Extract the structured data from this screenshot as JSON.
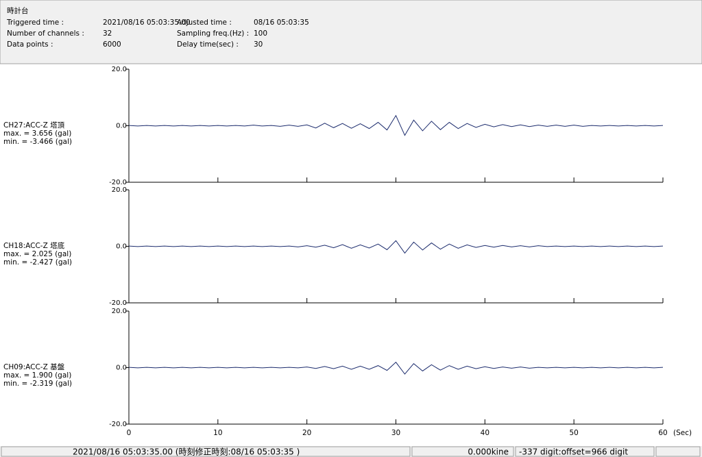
{
  "header": {
    "title": "時計台",
    "fields": [
      {
        "label": "Triggered time :",
        "value": "2021/08/16 05:03:35.00"
      },
      {
        "label": "Number of channels :",
        "value": 32
      },
      {
        "label": "Data points :",
        "value": 6000
      },
      {
        "label": "Adjusted time :",
        "value": "08/16 05:03:35"
      },
      {
        "label": "Sampling freq.(Hz) :",
        "value": 100
      },
      {
        "label": "Delay time(sec) :",
        "value": 30
      }
    ]
  },
  "chart_data": [
    {
      "type": "line",
      "name": "CH27:ACC-Z 塔頂",
      "max_label": "max. = 3.656 (gal)",
      "min_label": "min. = -3.466 (gal)",
      "color": "#1a2a6c",
      "ylim": [
        -20,
        20
      ],
      "yticks": [
        {
          "value": 20,
          "label": "20.0"
        },
        {
          "value": 0,
          "label": "0.0"
        },
        {
          "value": -20,
          "label": "-20.0"
        }
      ],
      "xlim": [
        0,
        60
      ],
      "xticks": [
        0,
        10,
        20,
        30,
        40,
        50,
        60
      ],
      "x": [
        0,
        1,
        2,
        3,
        4,
        5,
        6,
        7,
        8,
        9,
        10,
        11,
        12,
        13,
        14,
        15,
        16,
        17,
        18,
        19,
        20,
        21,
        22,
        23,
        24,
        25,
        26,
        27,
        28,
        29,
        30,
        31,
        32,
        33,
        34,
        35,
        36,
        37,
        38,
        39,
        40,
        41,
        42,
        43,
        44,
        45,
        46,
        47,
        48,
        49,
        50,
        51,
        52,
        53,
        54,
        55,
        56,
        57,
        58,
        59,
        60
      ],
      "values": [
        0.1,
        -0.1,
        0.1,
        -0.1,
        0.1,
        -0.1,
        0.1,
        -0.1,
        0.1,
        -0.1,
        0.1,
        -0.1,
        0.1,
        -0.1,
        0.2,
        -0.1,
        0.1,
        -0.2,
        0.2,
        -0.2,
        0.3,
        -0.8,
        0.9,
        -0.7,
        0.8,
        -0.9,
        0.7,
        -1.0,
        1.2,
        -1.5,
        3.6,
        -3.4,
        2.0,
        -1.8,
        1.6,
        -1.4,
        1.2,
        -1.0,
        0.8,
        -0.6,
        0.5,
        -0.4,
        0.4,
        -0.3,
        0.3,
        -0.3,
        0.2,
        -0.2,
        0.2,
        -0.2,
        0.2,
        -0.2,
        0.1,
        -0.1,
        0.1,
        -0.1,
        0.1,
        -0.1,
        0.1,
        -0.1,
        0.1
      ]
    },
    {
      "type": "line",
      "name": "CH18:ACC-Z 塔底",
      "max_label": "max. = 2.025 (gal)",
      "min_label": "min. = -2.427 (gal)",
      "color": "#1a2a6c",
      "ylim": [
        -20,
        20
      ],
      "yticks": [
        {
          "value": 20,
          "label": "20.0"
        },
        {
          "value": 0,
          "label": "0.0"
        },
        {
          "value": -20,
          "label": "-20.0"
        }
      ],
      "xlim": [
        0,
        60
      ],
      "xticks": [
        0,
        10,
        20,
        30,
        40,
        50,
        60
      ],
      "x": [
        0,
        1,
        2,
        3,
        4,
        5,
        6,
        7,
        8,
        9,
        10,
        11,
        12,
        13,
        14,
        15,
        16,
        17,
        18,
        19,
        20,
        21,
        22,
        23,
        24,
        25,
        26,
        27,
        28,
        29,
        30,
        31,
        32,
        33,
        34,
        35,
        36,
        37,
        38,
        39,
        40,
        41,
        42,
        43,
        44,
        45,
        46,
        47,
        48,
        49,
        50,
        51,
        52,
        53,
        54,
        55,
        56,
        57,
        58,
        59,
        60
      ],
      "values": [
        0.1,
        -0.1,
        0.1,
        -0.1,
        0.1,
        -0.1,
        0.1,
        -0.1,
        0.1,
        -0.1,
        0.1,
        -0.1,
        0.1,
        -0.1,
        0.1,
        -0.1,
        0.1,
        -0.1,
        0.1,
        -0.2,
        0.2,
        -0.3,
        0.4,
        -0.5,
        0.6,
        -0.7,
        0.5,
        -0.6,
        0.8,
        -1.2,
        2.0,
        -2.4,
        1.5,
        -1.3,
        1.2,
        -1.0,
        0.8,
        -0.7,
        0.5,
        -0.4,
        0.3,
        -0.3,
        0.3,
        -0.2,
        0.2,
        -0.2,
        0.2,
        -0.1,
        0.1,
        -0.1,
        0.1,
        -0.1,
        0.1,
        -0.1,
        0.1,
        -0.1,
        0.1,
        -0.1,
        0.1,
        -0.1,
        0.1
      ]
    },
    {
      "type": "line",
      "name": "CH09:ACC-Z 基盤",
      "max_label": "max. = 1.900 (gal)",
      "min_label": "min. = -2.319 (gal)",
      "color": "#1a2a6c",
      "ylim": [
        -20,
        20
      ],
      "yticks": [
        {
          "value": 20,
          "label": "20.0"
        },
        {
          "value": 0,
          "label": "0.0"
        },
        {
          "value": -20,
          "label": "-20.0"
        }
      ],
      "xlim": [
        0,
        60
      ],
      "xticks": [
        0,
        10,
        20,
        30,
        40,
        50,
        60
      ],
      "xlabel": "(Sec)",
      "x": [
        0,
        1,
        2,
        3,
        4,
        5,
        6,
        7,
        8,
        9,
        10,
        11,
        12,
        13,
        14,
        15,
        16,
        17,
        18,
        19,
        20,
        21,
        22,
        23,
        24,
        25,
        26,
        27,
        28,
        29,
        30,
        31,
        32,
        33,
        34,
        35,
        36,
        37,
        38,
        39,
        40,
        41,
        42,
        43,
        44,
        45,
        46,
        47,
        48,
        49,
        50,
        51,
        52,
        53,
        54,
        55,
        56,
        57,
        58,
        59,
        60
      ],
      "values": [
        0.1,
        -0.1,
        0.1,
        -0.1,
        0.1,
        -0.1,
        0.1,
        -0.1,
        0.1,
        -0.1,
        0.1,
        -0.1,
        0.1,
        -0.1,
        0.1,
        -0.1,
        0.1,
        -0.1,
        0.1,
        -0.1,
        0.2,
        -0.3,
        0.4,
        -0.4,
        0.5,
        -0.6,
        0.5,
        -0.6,
        0.7,
        -1.0,
        1.9,
        -2.3,
        1.4,
        -1.2,
        1.0,
        -0.9,
        0.7,
        -0.6,
        0.5,
        -0.4,
        0.3,
        -0.3,
        0.2,
        -0.2,
        0.2,
        -0.2,
        0.1,
        -0.1,
        0.1,
        -0.1,
        0.1,
        -0.1,
        0.1,
        -0.1,
        0.1,
        -0.1,
        0.1,
        -0.1,
        0.1,
        -0.1,
        0.1
      ]
    }
  ],
  "status_bar": {
    "time": "2021/08/16 05:03:35.00 (時刻修正時刻:08/16 05:03:35 )",
    "velocity": "0.000kine",
    "digit": "-337 digit:offset=966 digit"
  }
}
